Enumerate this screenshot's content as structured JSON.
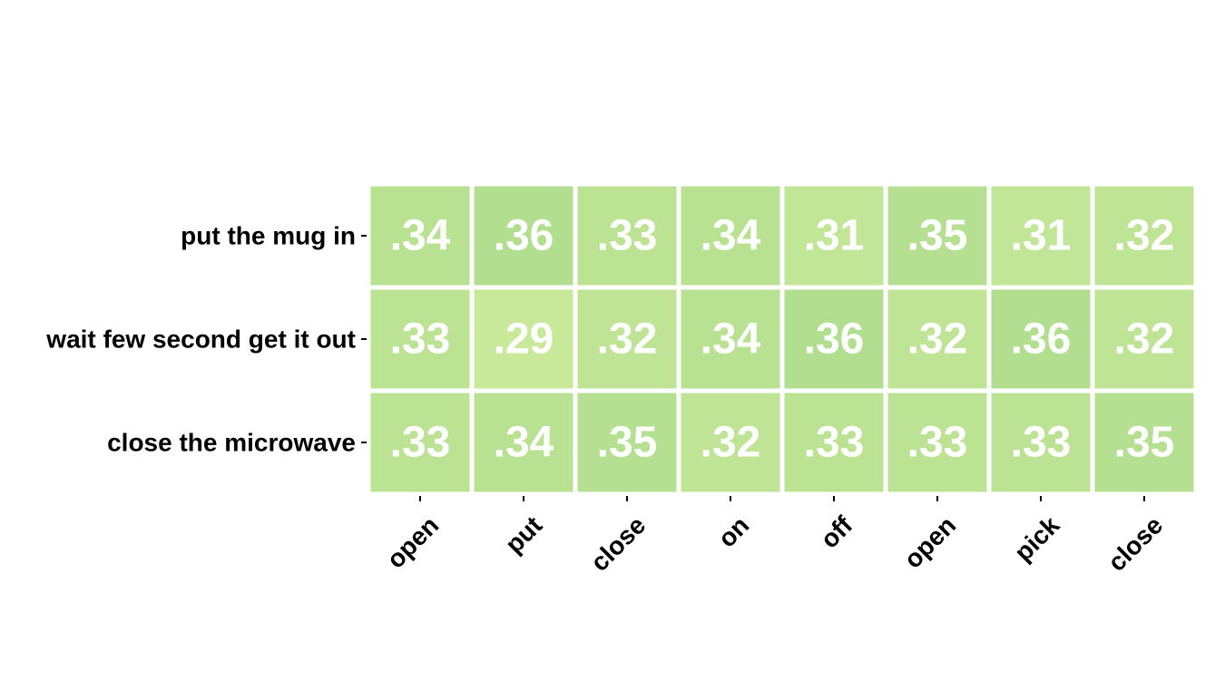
{
  "chart_data": {
    "type": "heatmap",
    "title": "",
    "xlabel": "",
    "ylabel": "",
    "rows": [
      "put the mug in",
      "wait few second get it out",
      "close the microwave"
    ],
    "columns": [
      "open",
      "put",
      "close",
      "on",
      "off",
      "open",
      "pick",
      "close"
    ],
    "values": [
      [
        0.34,
        0.36,
        0.33,
        0.34,
        0.31,
        0.35,
        0.31,
        0.32
      ],
      [
        0.33,
        0.29,
        0.32,
        0.34,
        0.36,
        0.32,
        0.36,
        0.32
      ],
      [
        0.33,
        0.34,
        0.35,
        0.32,
        0.33,
        0.33,
        0.33,
        0.35
      ]
    ],
    "cell_labels": [
      [
        ".34",
        ".36",
        ".33",
        ".34",
        ".31",
        ".35",
        ".31",
        ".32"
      ],
      [
        ".33",
        ".29",
        ".32",
        ".34",
        ".36",
        ".32",
        ".36",
        ".32"
      ],
      [
        ".33",
        ".34",
        ".35",
        ".32",
        ".33",
        ".33",
        ".33",
        ".35"
      ]
    ],
    "color_scale": {
      "min_value": 0.29,
      "max_value": 0.36,
      "min_color": "#c9e99a",
      "max_color": "#b2de8f"
    },
    "grid": false,
    "legend": "none"
  }
}
